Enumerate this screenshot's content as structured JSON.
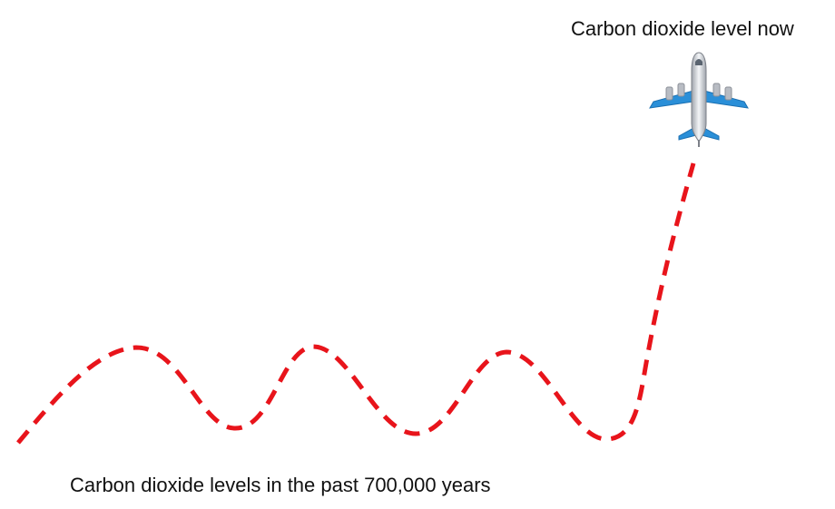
{
  "diagram": {
    "top_label": "Carbon dioxide level now",
    "bottom_label": "Carbon dioxide levels in the past 700,000 years",
    "curve_color": "#e8141b",
    "curve_style": "dashed",
    "marker_icon": "airplane-icon",
    "plane_colors": {
      "fuselage": "#d9dde3",
      "wings": "#2a8fd8",
      "engines": "#b8bcc3"
    }
  }
}
